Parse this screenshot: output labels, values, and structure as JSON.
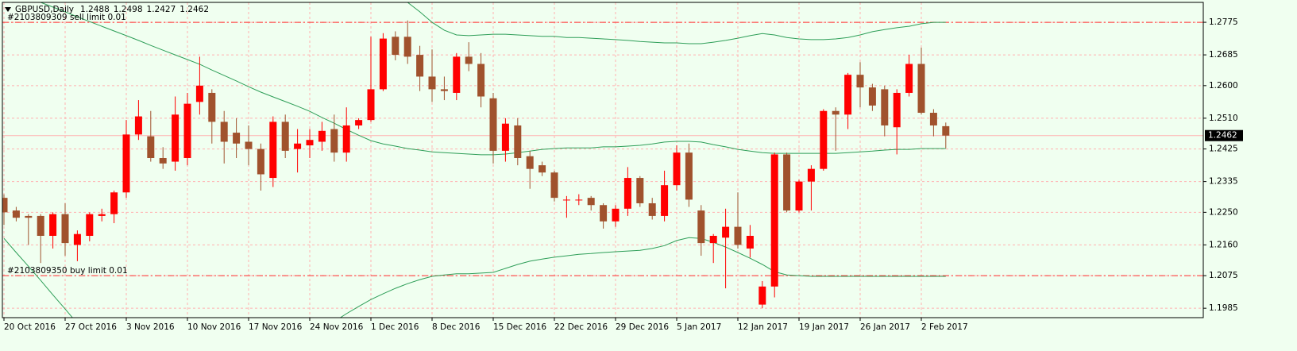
{
  "chart_data": {
    "type": "candlestick",
    "title": "GBPUSD,Daily",
    "categories": [
      "20 Oct 2016",
      null,
      null,
      null,
      null,
      "27 Oct 2016",
      null,
      null,
      null,
      null,
      "3 Nov 2016",
      null,
      null,
      null,
      null,
      "10 Nov 2016",
      null,
      null,
      null,
      null,
      "17 Nov 2016",
      null,
      null,
      null,
      null,
      "24 Nov 2016",
      null,
      null,
      null,
      null,
      "1 Dec 2016",
      null,
      null,
      null,
      null,
      "8 Dec 2016",
      null,
      null,
      null,
      null,
      "15 Dec 2016",
      null,
      null,
      null,
      null,
      "22 Dec 2016",
      null,
      null,
      null,
      null,
      "29 Dec 2016",
      null,
      null,
      null,
      null,
      "5 Jan 2017",
      null,
      null,
      null,
      null,
      "12 Jan 2017",
      null,
      null,
      null,
      null,
      "19 Jan 2017",
      null,
      null,
      null,
      null,
      "26 Jan 2017",
      null,
      null,
      null,
      null,
      "2 Feb 2017",
      null,
      null
    ],
    "open": [
      1.229,
      1.2255,
      1.224,
      1.224,
      1.2185,
      1.2245,
      1.216,
      1.2185,
      1.224,
      1.2245,
      1.2305,
      1.2465,
      1.246,
      1.24,
      1.239,
      1.24,
      1.2555,
      1.258,
      1.25,
      1.247,
      1.2445,
      1.2425,
      1.2345,
      1.25,
      1.2425,
      1.2435,
      1.2445,
      1.248,
      1.2415,
      1.249,
      1.2505,
      1.259,
      1.2735,
      1.2735,
      1.2685,
      1.2625,
      1.259,
      1.258,
      1.268,
      1.266,
      1.2565,
      1.242,
      1.249,
      1.2405,
      1.238,
      1.236,
      1.2285,
      1.2285,
      1.229,
      1.227,
      1.2225,
      1.226,
      1.2345,
      1.2275,
      1.224,
      1.2325,
      1.2415,
      1.2255,
      1.2165,
      1.218,
      1.221,
      1.215,
      1.1995,
      1.2045,
      1.241,
      1.2255,
      1.2335,
      1.237,
      1.253,
      1.252,
      1.263,
      1.2595,
      1.259,
      1.2485,
      1.258,
      1.266,
      1.2525,
      1.2488
    ],
    "high": [
      1.23,
      1.2265,
      1.2245,
      1.2245,
      1.225,
      1.2275,
      1.22,
      1.225,
      1.226,
      1.231,
      1.2505,
      1.256,
      1.253,
      1.243,
      1.257,
      1.258,
      1.268,
      1.259,
      1.253,
      1.251,
      1.249,
      1.244,
      1.2515,
      1.252,
      1.248,
      1.248,
      1.25,
      1.252,
      1.254,
      1.251,
      1.2735,
      1.2745,
      1.275,
      1.278,
      1.271,
      1.27,
      1.2625,
      1.269,
      1.272,
      1.269,
      1.258,
      1.251,
      1.251,
      1.242,
      1.239,
      1.2365,
      1.2295,
      1.23,
      1.2295,
      1.2275,
      1.227,
      1.2375,
      1.235,
      1.229,
      1.2365,
      1.2435,
      1.244,
      1.227,
      1.219,
      1.226,
      1.2305,
      1.2215,
      1.206,
      1.2415,
      1.2415,
      1.234,
      1.238,
      1.2535,
      1.254,
      1.2635,
      1.2665,
      1.2605,
      1.26,
      1.259,
      1.2685,
      1.2705,
      1.2535,
      1.2498
    ],
    "low": [
      1.2215,
      1.2225,
      1.216,
      1.211,
      1.215,
      1.213,
      1.2115,
      1.217,
      1.2225,
      1.222,
      1.229,
      1.245,
      1.239,
      1.237,
      1.2365,
      1.238,
      1.252,
      1.244,
      1.2385,
      1.24,
      1.238,
      1.231,
      1.232,
      1.24,
      1.236,
      1.24,
      1.242,
      1.239,
      1.239,
      1.248,
      1.25,
      1.2585,
      1.267,
      1.266,
      1.2585,
      1.2555,
      1.256,
      1.256,
      1.264,
      1.254,
      1.2385,
      1.239,
      1.238,
      1.2315,
      1.235,
      1.228,
      1.2235,
      1.227,
      1.2255,
      1.2205,
      1.221,
      1.224,
      1.2265,
      1.223,
      1.2225,
      1.231,
      1.2265,
      1.213,
      1.211,
      1.204,
      1.215,
      1.2125,
      1.1985,
      1.2015,
      1.225,
      1.225,
      1.2255,
      1.2365,
      1.242,
      1.248,
      1.254,
      1.253,
      1.246,
      1.241,
      1.257,
      1.252,
      1.246,
      1.2427
    ],
    "close": [
      1.225,
      1.2235,
      1.2235,
      1.2185,
      1.2245,
      1.2165,
      1.219,
      1.2245,
      1.2245,
      1.2305,
      1.2465,
      1.2515,
      1.24,
      1.2385,
      1.252,
      1.255,
      1.26,
      1.25,
      1.2445,
      1.244,
      1.2425,
      1.2355,
      1.25,
      1.242,
      1.244,
      1.245,
      1.2475,
      1.2415,
      1.249,
      1.2505,
      1.259,
      1.273,
      1.2685,
      1.268,
      1.2625,
      1.259,
      1.2585,
      1.268,
      1.266,
      1.257,
      1.242,
      1.2495,
      1.24,
      1.237,
      1.236,
      1.229,
      1.2285,
      1.2285,
      1.227,
      1.2225,
      1.226,
      1.2345,
      1.2275,
      1.224,
      1.2325,
      1.2415,
      1.2285,
      1.2165,
      1.2185,
      1.221,
      1.216,
      1.2185,
      1.2045,
      1.241,
      1.2255,
      1.2335,
      1.237,
      1.253,
      1.252,
      1.263,
      1.2595,
      1.2545,
      1.249,
      1.258,
      1.266,
      1.2525,
      1.249,
      1.2462
    ],
    "up_color": "#ff0000",
    "down_color": "#a0522d",
    "bollinger": {
      "color": "#2e9e58",
      "upper": [
        null,
        null,
        null,
        null,
        null,
        null,
        null,
        null,
        null,
        null,
        null,
        null,
        null,
        null,
        null,
        null,
        null,
        null,
        null,
        null,
        null,
        null,
        null,
        null,
        null,
        null,
        null,
        null,
        null,
        null,
        null,
        1.2885,
        1.2858,
        1.283,
        1.2804,
        1.2775,
        1.2753,
        1.274,
        1.2738,
        1.274,
        1.2742,
        1.2742,
        1.274,
        1.2738,
        1.2736,
        1.2736,
        1.2733,
        1.2733,
        1.2731,
        1.2729,
        1.2727,
        1.2725,
        1.2722,
        1.272,
        1.2718,
        1.2718,
        1.2716,
        1.2716,
        1.272,
        1.2725,
        1.2731,
        1.2738,
        1.2744,
        1.274,
        1.2733,
        1.2729,
        1.2727,
        1.2727,
        1.2729,
        1.2733,
        1.274,
        1.2749,
        1.2755,
        1.276,
        1.2764,
        1.2771,
        1.2775,
        1.2775
      ],
      "middle": [
        1.2869,
        1.2856,
        1.2843,
        1.283,
        1.2817,
        1.2804,
        1.279,
        1.2777,
        1.2764,
        1.2751,
        1.2738,
        1.2725,
        1.2711,
        1.2698,
        1.2685,
        1.2672,
        1.2659,
        1.2643,
        1.2628,
        1.2613,
        1.2597,
        1.2582,
        1.2569,
        1.2556,
        1.2543,
        1.2529,
        1.2512,
        1.2496,
        1.2479,
        1.2463,
        1.2448,
        1.2439,
        1.2433,
        1.2426,
        1.2422,
        1.2417,
        1.2415,
        1.2413,
        1.2411,
        1.2409,
        1.2409,
        1.2411,
        1.2415,
        1.2419,
        1.2424,
        1.2426,
        1.2428,
        1.2428,
        1.2428,
        1.2431,
        1.2431,
        1.2433,
        1.2435,
        1.2439,
        1.2444,
        1.2446,
        1.2446,
        1.2444,
        1.2437,
        1.2431,
        1.2424,
        1.2419,
        1.2415,
        1.2413,
        1.2413,
        1.2413,
        1.2413,
        1.2413,
        1.2413,
        1.2415,
        1.2417,
        1.2419,
        1.2422,
        1.2424,
        1.2424,
        1.2426,
        1.2426,
        1.2426
      ],
      "lower": [
        1.2178,
        1.2139,
        1.2101,
        1.2062,
        1.2022,
        1.1983,
        1.1943,
        null,
        null,
        null,
        null,
        null,
        null,
        null,
        null,
        null,
        null,
        null,
        null,
        null,
        null,
        null,
        null,
        null,
        null,
        null,
        null,
        1.1948,
        1.197,
        1.199,
        1.2009,
        1.2025,
        1.204,
        1.2053,
        1.2064,
        1.2073,
        1.2077,
        1.208,
        1.208,
        1.2082,
        1.2084,
        1.2095,
        1.2106,
        1.2115,
        1.2121,
        1.2126,
        1.213,
        1.2134,
        1.2136,
        1.2139,
        1.2141,
        1.2143,
        1.2145,
        1.215,
        1.2158,
        1.2172,
        1.218,
        1.2178,
        1.2167,
        1.2154,
        1.2139,
        1.2123,
        1.2106,
        1.2086,
        1.2077,
        1.2075,
        1.2073,
        1.2073,
        1.2073,
        1.2073,
        1.2073,
        1.2073,
        1.2073,
        1.2073,
        1.2073,
        1.2073,
        1.2073,
        1.2073
      ]
    },
    "orders": [
      {
        "label": "#2103809309 sell limit 0.01",
        "value": 1.2775,
        "color": "#ff3030"
      },
      {
        "label": "#2103809350 buy limit 0.01",
        "value": 1.2075,
        "color": "#ff3030"
      }
    ],
    "ylim": [
      1.1959,
      1.283
    ],
    "yticks": [
      1.2775,
      1.2685,
      {
        "value": 1.26,
        "label": "1.2600"
      },
      {
        "value": 1.251,
        "label": "1.2510"
      },
      1.2425,
      1.2335,
      {
        "value": 1.225,
        "label": "1.2250"
      },
      {
        "value": 1.216,
        "label": "1.2160"
      },
      1.2075,
      1.1985
    ],
    "grid": true,
    "grid_color": "#ffb0b0",
    "background": "#f0fff0"
  }
}
